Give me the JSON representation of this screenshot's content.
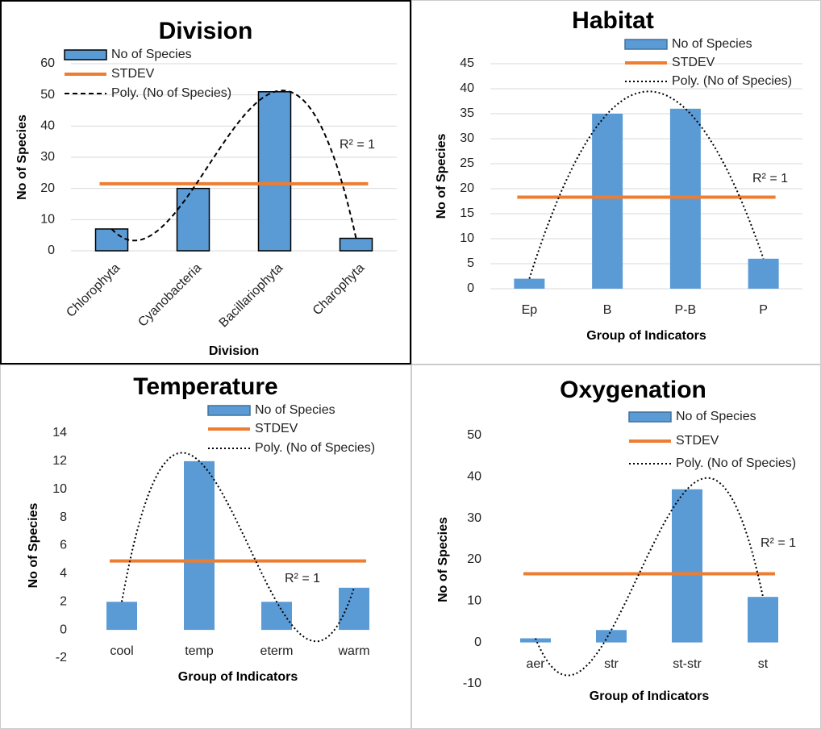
{
  "chart_data": [
    {
      "type": "bar",
      "title": "Division",
      "xlabel": "Division",
      "ylabel": "No of Species",
      "categories": [
        "Chlorophyta",
        "Cyanobacteria",
        "Bacillariophyta",
        "Charophyta"
      ],
      "series": [
        {
          "name": "No of Species",
          "color": "#5b9bd5",
          "values": [
            7,
            20,
            51,
            4
          ]
        },
        {
          "name": "STDEV",
          "color": "#ed7d31",
          "values": [
            21.5,
            21.5,
            21.5,
            21.5
          ]
        }
      ],
      "trendline": {
        "name": "Poly. (No of Species)",
        "annotation": "R² = 1",
        "color": "#000000",
        "dash": "dashed"
      },
      "ylim": [
        0,
        60
      ],
      "yticks": [
        0,
        10,
        20,
        30,
        40,
        50,
        60
      ],
      "grid": true
    },
    {
      "type": "bar",
      "title": "Habitat",
      "xlabel": "Group of Indicators",
      "ylabel": "No of Species",
      "categories": [
        "Ep",
        "B",
        "P-B",
        "P"
      ],
      "series": [
        {
          "name": "No of Species",
          "color": "#5b9bd5",
          "values": [
            2,
            35,
            36,
            6
          ]
        },
        {
          "name": "STDEV",
          "color": "#ed7d31",
          "values": [
            18.3,
            18.3,
            18.3,
            18.3
          ]
        }
      ],
      "trendline": {
        "name": "Poly. (No of Species)",
        "annotation": "R² = 1",
        "color": "#000000",
        "dash": "dotted"
      },
      "ylim": [
        0,
        45
      ],
      "yticks": [
        0,
        5,
        10,
        15,
        20,
        25,
        30,
        35,
        40,
        45
      ],
      "grid": true
    },
    {
      "type": "bar",
      "title": "Temperature",
      "xlabel": "Group of Indicators",
      "ylabel": "No of Species",
      "categories": [
        "cool",
        "temp",
        "eterm",
        "warm"
      ],
      "series": [
        {
          "name": "No of Species",
          "color": "#5b9bd5",
          "values": [
            2,
            12,
            2,
            3
          ]
        },
        {
          "name": "STDEV",
          "color": "#ed7d31",
          "values": [
            4.9,
            4.9,
            4.9,
            4.9
          ]
        }
      ],
      "trendline": {
        "name": "Poly. (No of Species)",
        "annotation": "R² = 1",
        "color": "#000000",
        "dash": "dotted"
      },
      "ylim": [
        -2,
        14
      ],
      "yticks": [
        -2,
        0,
        2,
        4,
        6,
        8,
        10,
        12,
        14
      ],
      "grid": false
    },
    {
      "type": "bar",
      "title": "Oxygenation",
      "xlabel": "Group of Indicators",
      "ylabel": "No of Species",
      "categories": [
        "aer",
        "str",
        "st-str",
        "st"
      ],
      "series": [
        {
          "name": "No of Species",
          "color": "#5b9bd5",
          "values": [
            1,
            3,
            37,
            11
          ]
        },
        {
          "name": "STDEV",
          "color": "#ed7d31",
          "values": [
            16.6,
            16.6,
            16.6,
            16.6
          ]
        }
      ],
      "trendline": {
        "name": "Poly. (No of Species)",
        "annotation": "R² = 1",
        "color": "#000000",
        "dash": "dotted"
      },
      "ylim": [
        -10,
        50
      ],
      "yticks": [
        -10,
        0,
        10,
        20,
        30,
        40,
        50
      ],
      "grid": false
    }
  ]
}
